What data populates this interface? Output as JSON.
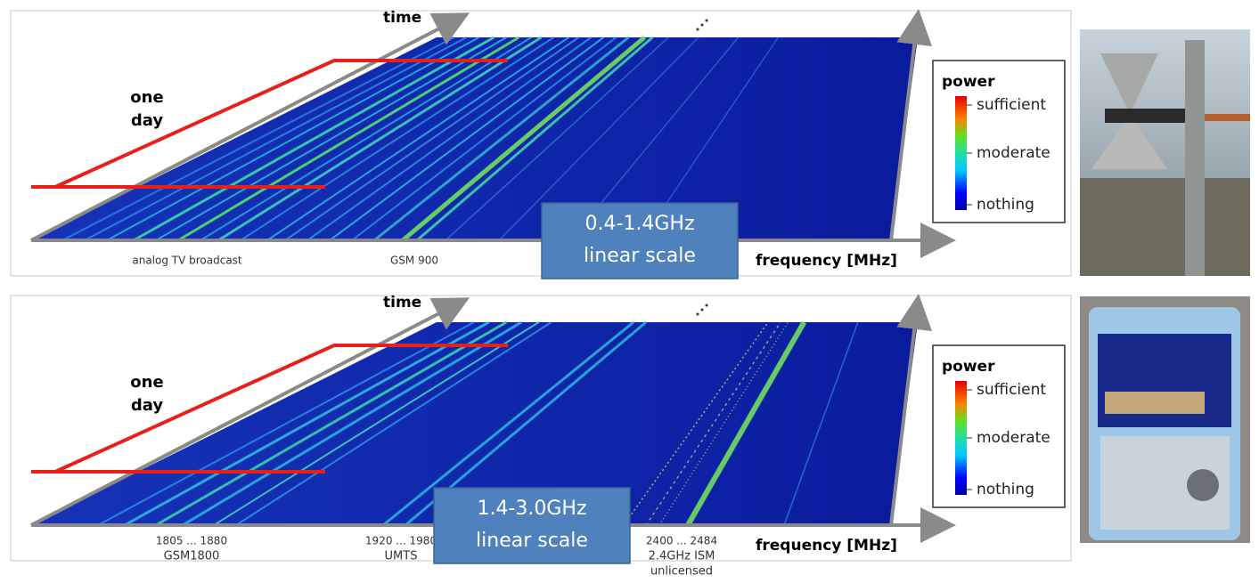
{
  "panels": [
    {
      "time": "time",
      "one_day": [
        "one",
        "day"
      ],
      "legend": {
        "title": "power",
        "levels": [
          "sufficient",
          "moderate",
          "nothing"
        ]
      },
      "band_labels": [
        [
          "analog TV broadcast"
        ],
        [
          "GSM 900"
        ]
      ],
      "callout": [
        "0.4-1.4GHz",
        "linear scale"
      ],
      "frequency_axis": "frequency [MHz]"
    },
    {
      "time": "time",
      "one_day": [
        "one",
        "day"
      ],
      "legend": {
        "title": "power",
        "levels": [
          "sufficient",
          "moderate",
          "nothing"
        ]
      },
      "band_labels": [
        [
          "1805 ... 1880",
          "GSM1800"
        ],
        [
          "1920 ... 1980",
          "UMTS"
        ],
        [
          "2400 ... 2484",
          "2.4GHz ISM",
          "unlicensed"
        ]
      ],
      "callout": [
        "1.4-3.0GHz",
        "linear scale"
      ],
      "frequency_axis": "frequency [MHz]"
    }
  ]
}
